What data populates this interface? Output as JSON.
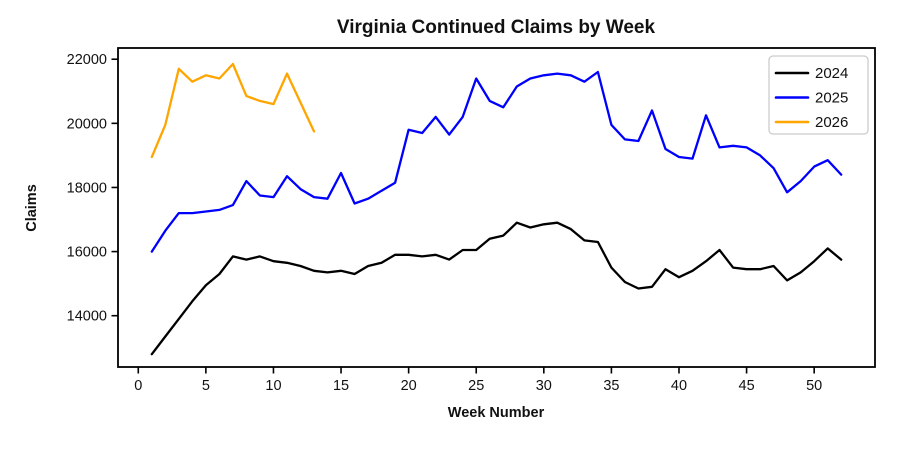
{
  "chart_data": {
    "type": "line",
    "title": "Virginia Continued Claims by Week",
    "xlabel": "Week Number",
    "ylabel": "Claims",
    "grid": false,
    "legend_position": "upper right",
    "xlim": [
      -1.5,
      54.5
    ],
    "ylim": [
      12400,
      22350
    ],
    "x_ticks": [
      0,
      5,
      10,
      15,
      20,
      25,
      30,
      35,
      40,
      45,
      50
    ],
    "y_ticks": [
      14000,
      16000,
      18000,
      20000,
      22000
    ],
    "frame_color": "#000000",
    "series": [
      {
        "name": "2024",
        "color": "#000000",
        "x_start": 1,
        "values": [
          12800,
          13350,
          13900,
          14450,
          14950,
          15300,
          15850,
          15750,
          15850,
          15700,
          15650,
          15550,
          15400,
          15350,
          15400,
          15300,
          15550,
          15650,
          15900,
          15900,
          15850,
          15900,
          15750,
          16050,
          16050,
          16400,
          16500,
          16900,
          16750,
          16850,
          16900,
          16700,
          16350,
          16300,
          15500,
          15050,
          14850,
          14900,
          15450,
          15200,
          15400,
          15700,
          16050,
          15500,
          15450,
          15450,
          15550,
          15100,
          15350,
          15700,
          16100,
          15750
        ]
      },
      {
        "name": "2025",
        "color": "#0000ff",
        "x_start": 1,
        "values": [
          16000,
          16650,
          17200,
          17200,
          17250,
          17300,
          17450,
          18200,
          17750,
          17700,
          18350,
          17950,
          17700,
          17650,
          18450,
          17500,
          17650,
          17900,
          18150,
          19800,
          19700,
          20200,
          19650,
          20200,
          21400,
          20700,
          20500,
          21150,
          21400,
          21500,
          21550,
          21500,
          21300,
          21600,
          19950,
          19500,
          19450,
          20400,
          19200,
          18950,
          18900,
          20250,
          19250,
          19300,
          19250,
          19000,
          18600,
          17850,
          18200,
          18650,
          18850,
          18400
        ]
      },
      {
        "name": "2026",
        "color": "#ffa500",
        "x_start": 1,
        "values": [
          18950,
          19950,
          21700,
          21300,
          21500,
          21400,
          21850,
          20850,
          20700,
          20600,
          21550,
          20650,
          19750
        ]
      }
    ],
    "legend_entries": [
      {
        "label": "2024",
        "color": "#000000"
      },
      {
        "label": "2025",
        "color": "#0000ff"
      },
      {
        "label": "2026",
        "color": "#ffa500"
      }
    ]
  }
}
